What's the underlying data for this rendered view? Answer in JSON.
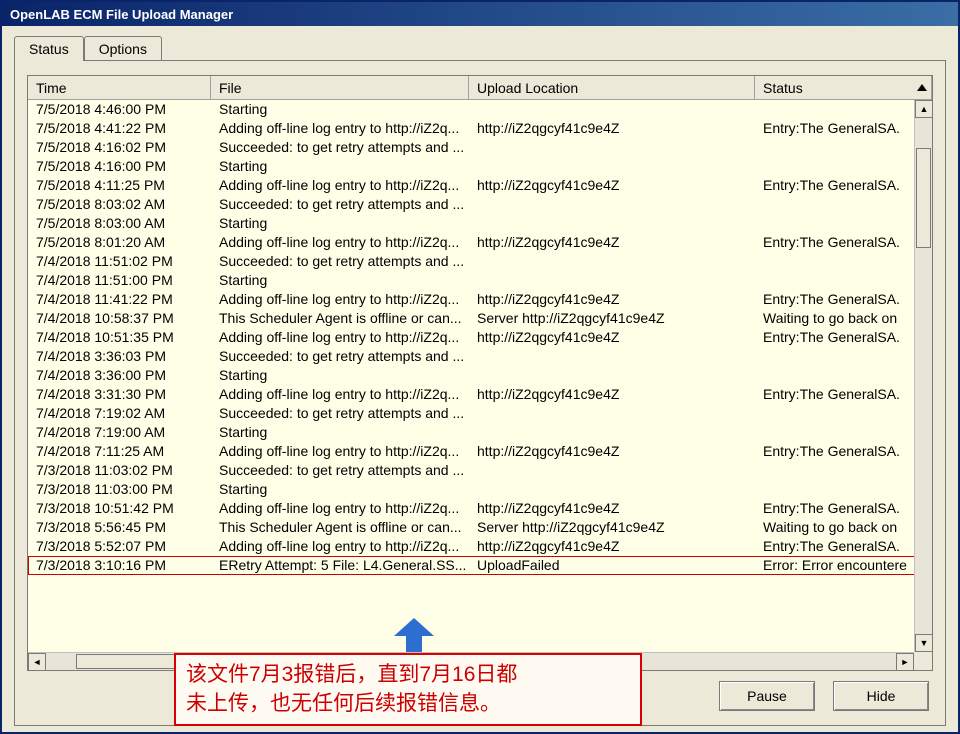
{
  "window": {
    "title": "OpenLAB ECM File Upload Manager"
  },
  "tabs": {
    "status": "Status",
    "options": "Options"
  },
  "columns": {
    "time": "Time",
    "file": "File",
    "location": "Upload Location",
    "status": "Status"
  },
  "buttons": {
    "pause": "Pause",
    "hide": "Hide"
  },
  "annotation": {
    "line1": "该文件7月3报错后，直到7月16日都",
    "line2": "未上传，也无任何后续报错信息。"
  },
  "rows": [
    {
      "time": "7/5/2018 4:46:00 PM",
      "file": "Starting",
      "location": "",
      "status": ""
    },
    {
      "time": "7/5/2018 4:41:22 PM",
      "file": "Adding off-line log entry to http://iZ2q...",
      "location": "http://iZ2qgcyf41c9e4Z",
      "status": "Entry:The GeneralSA."
    },
    {
      "time": "7/5/2018 4:16:02 PM",
      "file": "Succeeded: to get retry attempts and ...",
      "location": "",
      "status": ""
    },
    {
      "time": "7/5/2018 4:16:00 PM",
      "file": "Starting",
      "location": "",
      "status": ""
    },
    {
      "time": "7/5/2018 4:11:25 PM",
      "file": "Adding off-line log entry to http://iZ2q...",
      "location": "http://iZ2qgcyf41c9e4Z",
      "status": "Entry:The GeneralSA."
    },
    {
      "time": "7/5/2018 8:03:02 AM",
      "file": "Succeeded: to get retry attempts and ...",
      "location": "",
      "status": ""
    },
    {
      "time": "7/5/2018 8:03:00 AM",
      "file": "Starting",
      "location": "",
      "status": ""
    },
    {
      "time": "7/5/2018 8:01:20 AM",
      "file": "Adding off-line log entry to http://iZ2q...",
      "location": "http://iZ2qgcyf41c9e4Z",
      "status": "Entry:The GeneralSA."
    },
    {
      "time": "7/4/2018 11:51:02 PM",
      "file": "Succeeded: to get retry attempts and ...",
      "location": "",
      "status": ""
    },
    {
      "time": "7/4/2018 11:51:00 PM",
      "file": "Starting",
      "location": "",
      "status": ""
    },
    {
      "time": "7/4/2018 11:41:22 PM",
      "file": "Adding off-line log entry to http://iZ2q...",
      "location": "http://iZ2qgcyf41c9e4Z",
      "status": "Entry:The GeneralSA."
    },
    {
      "time": "7/4/2018 10:58:37 PM",
      "file": "This Scheduler Agent is offline or can...",
      "location": "Server http://iZ2qgcyf41c9e4Z",
      "status": "Waiting to go back on"
    },
    {
      "time": "7/4/2018 10:51:35 PM",
      "file": "Adding off-line log entry to http://iZ2q...",
      "location": "http://iZ2qgcyf41c9e4Z",
      "status": "Entry:The GeneralSA."
    },
    {
      "time": "7/4/2018 3:36:03 PM",
      "file": "Succeeded: to get retry attempts and ...",
      "location": "",
      "status": ""
    },
    {
      "time": "7/4/2018 3:36:00 PM",
      "file": "Starting",
      "location": "",
      "status": ""
    },
    {
      "time": "7/4/2018 3:31:30 PM",
      "file": "Adding off-line log entry to http://iZ2q...",
      "location": "http://iZ2qgcyf41c9e4Z",
      "status": "Entry:The GeneralSA."
    },
    {
      "time": "7/4/2018 7:19:02 AM",
      "file": "Succeeded: to get retry attempts and ...",
      "location": "",
      "status": ""
    },
    {
      "time": "7/4/2018 7:19:00 AM",
      "file": "Starting",
      "location": "",
      "status": ""
    },
    {
      "time": "7/4/2018 7:11:25 AM",
      "file": "Adding off-line log entry to http://iZ2q...",
      "location": "http://iZ2qgcyf41c9e4Z",
      "status": "Entry:The GeneralSA."
    },
    {
      "time": "7/3/2018 11:03:02 PM",
      "file": "Succeeded: to get retry attempts and ...",
      "location": "",
      "status": ""
    },
    {
      "time": "7/3/2018 11:03:00 PM",
      "file": "Starting",
      "location": "",
      "status": ""
    },
    {
      "time": "7/3/2018 10:51:42 PM",
      "file": "Adding off-line log entry to http://iZ2q...",
      "location": "http://iZ2qgcyf41c9e4Z",
      "status": "Entry:The GeneralSA."
    },
    {
      "time": "7/3/2018 5:56:45 PM",
      "file": "This Scheduler Agent is offline or can...",
      "location": "Server http://iZ2qgcyf41c9e4Z",
      "status": "Waiting to go back on"
    },
    {
      "time": "7/3/2018 5:52:07 PM",
      "file": "Adding off-line log entry to http://iZ2q...",
      "location": "http://iZ2qgcyf41c9e4Z",
      "status": "Entry:The GeneralSA."
    },
    {
      "time": "7/3/2018 3:10:16 PM",
      "file": "ERetry Attempt: 5 File: L4.General.SS...",
      "location": "UploadFailed",
      "status": "Error: Error encountere",
      "highlight": true
    }
  ],
  "style": {
    "bg_titlebar_from": "#0a246a",
    "bg_titlebar_to": "#3a6ea5",
    "bg_panel": "#ece9d8",
    "bg_list": "#ffffe8",
    "border": "#7a7a7a",
    "annotation_border": "#d00000",
    "annotation_text": "#c00000",
    "arrow_color": "#2d6fd1"
  }
}
